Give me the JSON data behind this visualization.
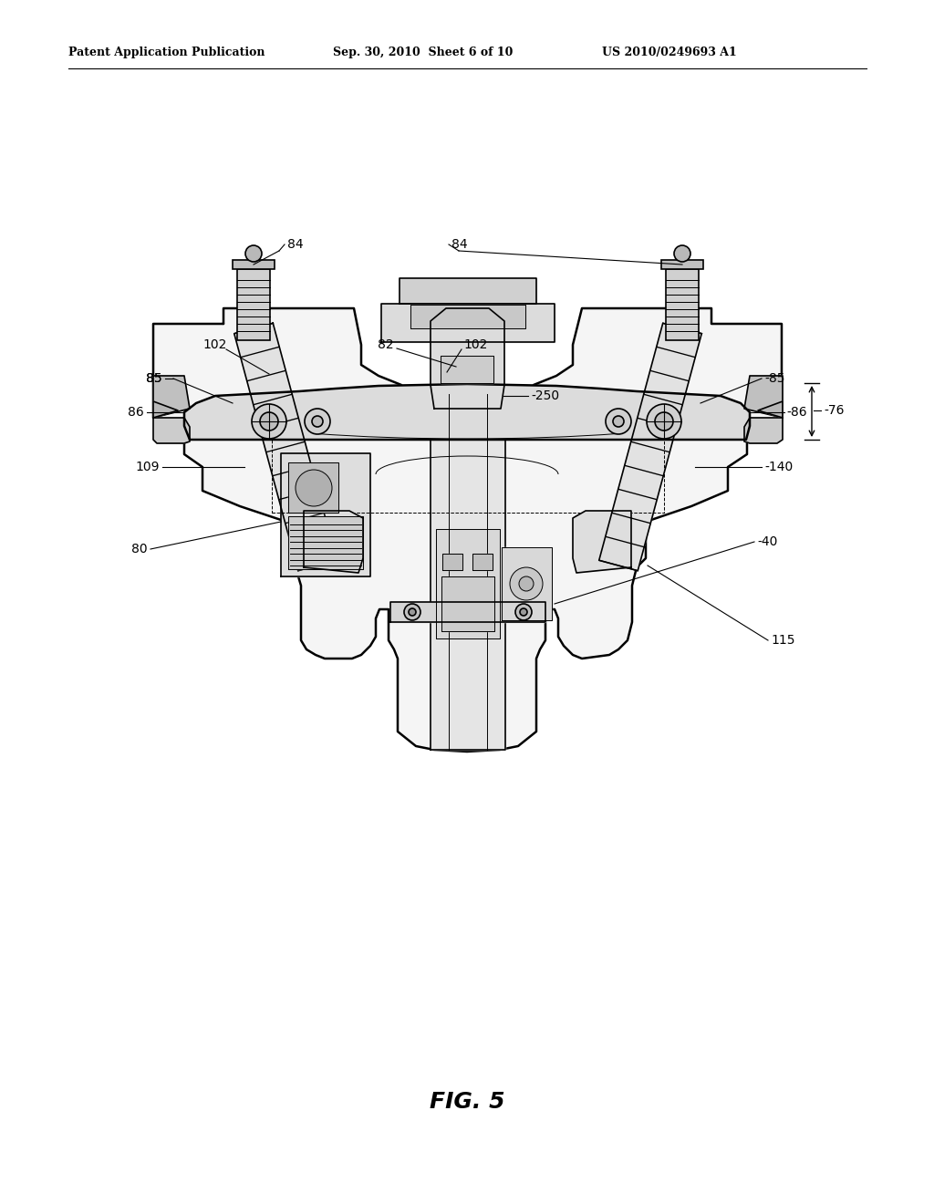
{
  "bg_color": "#ffffff",
  "line_color": "#000000",
  "header_left": "Patent Application Publication",
  "header_mid": "Sep. 30, 2010  Sheet 6 of 10",
  "header_right": "US 2010/0249693 A1",
  "caption": "FIG. 5",
  "labels": {
    "84": "84",
    "85": "85",
    "109": "109",
    "140": "140",
    "40": "40",
    "80": "80",
    "115": "115",
    "86": "86",
    "76": "76",
    "102": "102",
    "82": "82",
    "250": "250"
  }
}
